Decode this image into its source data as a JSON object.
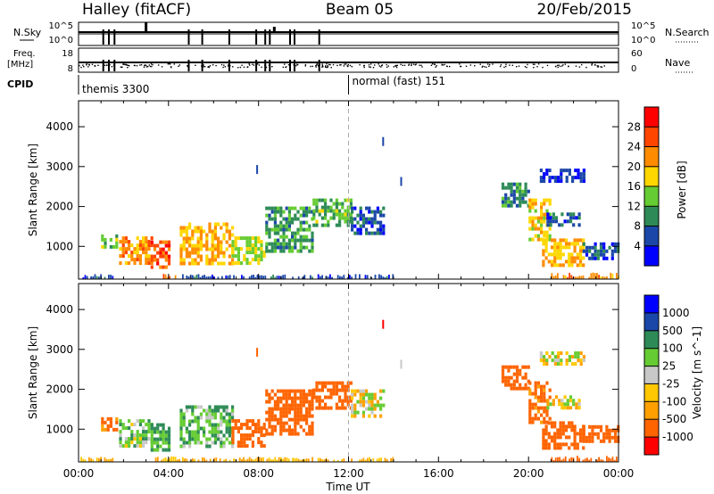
{
  "header": {
    "station": "Halley (fitACF)",
    "beam": "Beam 05",
    "date": "20/Feb/2015"
  },
  "status_panels": {
    "nsky_label": "N.Sky",
    "nsky_ticks": [
      "10^5",
      "10^0"
    ],
    "nsearch_label": "N.Search",
    "nsearch_ticks": [
      "10^5",
      "10^0"
    ],
    "freq_label": "Freq.",
    "freq_unit": "[MHz]",
    "freq_ticks": [
      "18",
      "8"
    ],
    "nave_label": "Nave",
    "nave_ticks": [
      "60",
      "0"
    ],
    "cpid_label": "CPID",
    "cpid_modes": [
      {
        "name": "themis",
        "id": "3300",
        "start": 0
      },
      {
        "name": "normal (fast)",
        "id": "151",
        "start": 12
      }
    ],
    "channel_change_hours": [
      1.1,
      1.35,
      1.6,
      4.9,
      5.5,
      6.7,
      7.9,
      8.3,
      8.5,
      9.4,
      9.6,
      10.7
    ]
  },
  "chart_data": [
    {
      "type": "heatmap",
      "name": "power",
      "xlabel": "",
      "ylabel": "Slant Range [km]",
      "x_range": [
        0,
        24
      ],
      "ylim": [
        180,
        4650
      ],
      "x_ticks": [
        "00:00",
        "04:00",
        "08:00",
        "12:00",
        "16:00",
        "20:00",
        "00:00"
      ],
      "y_ticks": [
        1000,
        2000,
        3000,
        4000
      ],
      "marker_hour": 12,
      "colorbar": {
        "label": "Power [dB]",
        "range": [
          0,
          32
        ],
        "ticks": [
          "4",
          "8",
          "12",
          "16",
          "20",
          "24",
          "28"
        ]
      },
      "echo_regions": [
        {
          "t": [
            1.0,
            1.7
          ],
          "r": [
            950,
            1300
          ],
          "v": 14
        },
        {
          "t": [
            1.8,
            3.2
          ],
          "r": [
            550,
            1250
          ],
          "v": 22
        },
        {
          "t": [
            3.2,
            4.0
          ],
          "r": [
            450,
            1150
          ],
          "v": 26
        },
        {
          "t": [
            4.5,
            6.8
          ],
          "r": [
            600,
            1600
          ],
          "v": 20
        },
        {
          "t": [
            6.8,
            8.3
          ],
          "r": [
            550,
            1250
          ],
          "v": 16
        },
        {
          "t": [
            8.3,
            10.4
          ],
          "r": [
            900,
            2000
          ],
          "v": 11
        },
        {
          "t": [
            10.4,
            12.1
          ],
          "r": [
            1500,
            2200
          ],
          "v": 13
        },
        {
          "t": [
            12.1,
            13.6
          ],
          "r": [
            1300,
            2000
          ],
          "v": 6
        },
        {
          "t": [
            18.8,
            20.0
          ],
          "r": [
            2000,
            2600
          ],
          "v": 10
        },
        {
          "t": [
            20.0,
            21.0
          ],
          "r": [
            1200,
            2200
          ],
          "v": 18
        },
        {
          "t": [
            20.8,
            22.3
          ],
          "r": [
            1500,
            1850
          ],
          "v": 6
        },
        {
          "t": [
            20.6,
            22.4
          ],
          "r": [
            500,
            1200
          ],
          "v": 20
        },
        {
          "t": [
            22.4,
            24.0
          ],
          "r": [
            700,
            1100
          ],
          "v": 6
        },
        {
          "t": [
            20.5,
            22.5
          ],
          "r": [
            2600,
            2950
          ],
          "v": 4
        }
      ],
      "ground_scatter": [
        {
          "t": [
            0.0,
            1.5
          ],
          "r": [
            180,
            280
          ],
          "v": 6
        },
        {
          "t": [
            3.4,
            4.6
          ],
          "r": [
            180,
            280
          ],
          "v": 24
        },
        {
          "t": [
            4.6,
            14.0
          ],
          "r": [
            180,
            260
          ],
          "v": 6
        },
        {
          "t": [
            21.0,
            24.0
          ],
          "r": [
            180,
            300
          ],
          "v": 22
        }
      ],
      "isolated_echoes": [
        {
          "t": 13.5,
          "r": 3650,
          "v": 6
        },
        {
          "t": 14.3,
          "r": 2650,
          "v": 4
        },
        {
          "t": 7.9,
          "r": 2950,
          "v": 6
        }
      ]
    },
    {
      "type": "heatmap",
      "name": "velocity",
      "xlabel": "Time UT",
      "ylabel": "Slant Range [km]",
      "x_range": [
        0,
        24
      ],
      "ylim": [
        180,
        4650
      ],
      "x_ticks": [
        "00:00",
        "04:00",
        "08:00",
        "12:00",
        "16:00",
        "20:00",
        "00:00"
      ],
      "y_ticks": [
        1000,
        2000,
        3000,
        4000
      ],
      "marker_hour": 12,
      "colorbar": {
        "label": "Velocity [m s^-1]",
        "ticks": [
          "1000",
          "500",
          "100",
          "25",
          "-25",
          "-100",
          "-500",
          "-1000"
        ]
      },
      "echo_regions": [
        {
          "t": [
            1.0,
            1.7
          ],
          "r": [
            950,
            1300
          ],
          "v": -150
        },
        {
          "t": [
            1.8,
            3.2
          ],
          "r": [
            550,
            1250
          ],
          "v": 60
        },
        {
          "t": [
            3.2,
            4.0
          ],
          "r": [
            450,
            1150
          ],
          "v": 120
        },
        {
          "t": [
            4.5,
            6.8
          ],
          "r": [
            600,
            1600
          ],
          "v": 80
        },
        {
          "t": [
            6.8,
            8.3
          ],
          "r": [
            550,
            1250
          ],
          "v": -300
        },
        {
          "t": [
            8.3,
            10.4
          ],
          "r": [
            900,
            2000
          ],
          "v": -350
        },
        {
          "t": [
            10.4,
            12.1
          ],
          "r": [
            1500,
            2200
          ],
          "v": -400
        },
        {
          "t": [
            12.1,
            13.6
          ],
          "r": [
            1300,
            2000
          ],
          "v": 0
        },
        {
          "t": [
            18.8,
            20.0
          ],
          "r": [
            2000,
            2600
          ],
          "v": -350
        },
        {
          "t": [
            20.0,
            21.0
          ],
          "r": [
            1200,
            2200
          ],
          "v": -150
        },
        {
          "t": [
            20.8,
            22.3
          ],
          "r": [
            1500,
            1850
          ],
          "v": 0
        },
        {
          "t": [
            20.6,
            22.4
          ],
          "r": [
            500,
            1200
          ],
          "v": -400
        },
        {
          "t": [
            22.4,
            24.0
          ],
          "r": [
            700,
            1100
          ],
          "v": -200
        },
        {
          "t": [
            20.5,
            22.5
          ],
          "r": [
            2600,
            2950
          ],
          "v": 10
        }
      ],
      "ground_scatter": [
        {
          "t": [
            0.0,
            1.5
          ],
          "r": [
            180,
            280
          ],
          "v": -30
        },
        {
          "t": [
            3.4,
            4.6
          ],
          "r": [
            180,
            280
          ],
          "v": -30
        },
        {
          "t": [
            4.6,
            14.0
          ],
          "r": [
            180,
            260
          ],
          "v": -30
        },
        {
          "t": [
            21.0,
            24.0
          ],
          "r": [
            180,
            300
          ],
          "v": -150
        }
      ],
      "isolated_echoes": [
        {
          "t": 13.5,
          "r": 3650,
          "v": -600
        },
        {
          "t": 14.3,
          "r": 2650,
          "v": 10
        },
        {
          "t": 7.9,
          "r": 2950,
          "v": -300
        }
      ]
    }
  ],
  "colors": {
    "power_scale": [
      "#0000ff",
      "#1b47a8",
      "#2e8b57",
      "#66cc33",
      "#ffd700",
      "#ff8c00",
      "#ff4500",
      "#ff0000"
    ],
    "velocity_scale": [
      "#ff0000",
      "#ff6400",
      "#ffa000",
      "#ffc800",
      "#c8c8c8",
      "#66cc33",
      "#2e8b57",
      "#1b47a8",
      "#0000ff"
    ],
    "grid_dash": "#aaaaaa"
  }
}
